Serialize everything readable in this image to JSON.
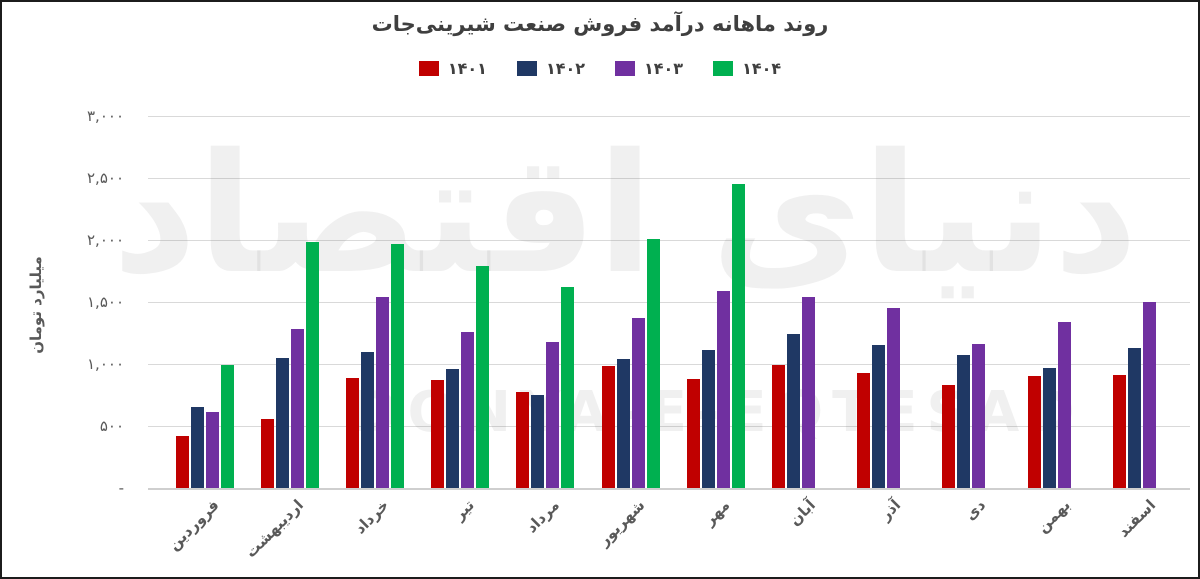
{
  "title": "روند ماهانه درآمد فروش صنعت شیرینی‌جات",
  "watermark": {
    "fa": "دنیای اقتصاد",
    "en": "DONYA-E-EQTESAD"
  },
  "y_axis": {
    "title": "میلیارد تومان",
    "ticks": [
      {
        "value": 3000,
        "label": "۳,۰۰۰"
      },
      {
        "value": 2500,
        "label": "۲,۵۰۰"
      },
      {
        "value": 2000,
        "label": "۲,۰۰۰"
      },
      {
        "value": 1500,
        "label": "۱,۵۰۰"
      },
      {
        "value": 1000,
        "label": "۱,۰۰۰"
      },
      {
        "value": 500,
        "label": "۵۰۰"
      },
      {
        "value": 0,
        "label": "-"
      }
    ]
  },
  "legend": [
    {
      "label": "۱۴۰۱",
      "color": "#C00000"
    },
    {
      "label": "۱۴۰۲",
      "color": "#1F3864"
    },
    {
      "label": "۱۴۰۳",
      "color": "#7030A0"
    },
    {
      "label": "۱۴۰۴",
      "color": "#00B050"
    }
  ],
  "chart_data": {
    "type": "bar",
    "title": "روند ماهانه درآمد فروش صنعت شیرینی‌جات",
    "xlabel": "",
    "ylabel": "میلیارد تومان",
    "ylim": [
      0,
      3000
    ],
    "grid": true,
    "legend_position": "top-center",
    "categories": [
      "فروردین",
      "اردیبهشت",
      "خرداد",
      "تیر",
      "مرداد",
      "شهریور",
      "مهر",
      "آبان",
      "آذر",
      "دی",
      "بهمن",
      "اسفند"
    ],
    "series": [
      {
        "name": "۱۴۰۱",
        "color": "#C00000",
        "values": [
          420,
          555,
          890,
          870,
          775,
          980,
          880,
          995,
          930,
          830,
          900,
          910
        ]
      },
      {
        "name": "۱۴۰۲",
        "color": "#1F3864",
        "values": [
          650,
          1050,
          1100,
          960,
          750,
          1040,
          1110,
          1240,
          1150,
          1070,
          970,
          1130
        ]
      },
      {
        "name": "۱۴۰۳",
        "color": "#7030A0",
        "values": [
          610,
          1280,
          1540,
          1260,
          1180,
          1370,
          1590,
          1540,
          1450,
          1160,
          1340,
          1500
        ]
      },
      {
        "name": "۱۴۰۴",
        "color": "#00B050",
        "values": [
          990,
          1980,
          1970,
          1790,
          1620,
          2010,
          2450,
          null,
          null,
          null,
          null,
          null
        ]
      }
    ]
  }
}
